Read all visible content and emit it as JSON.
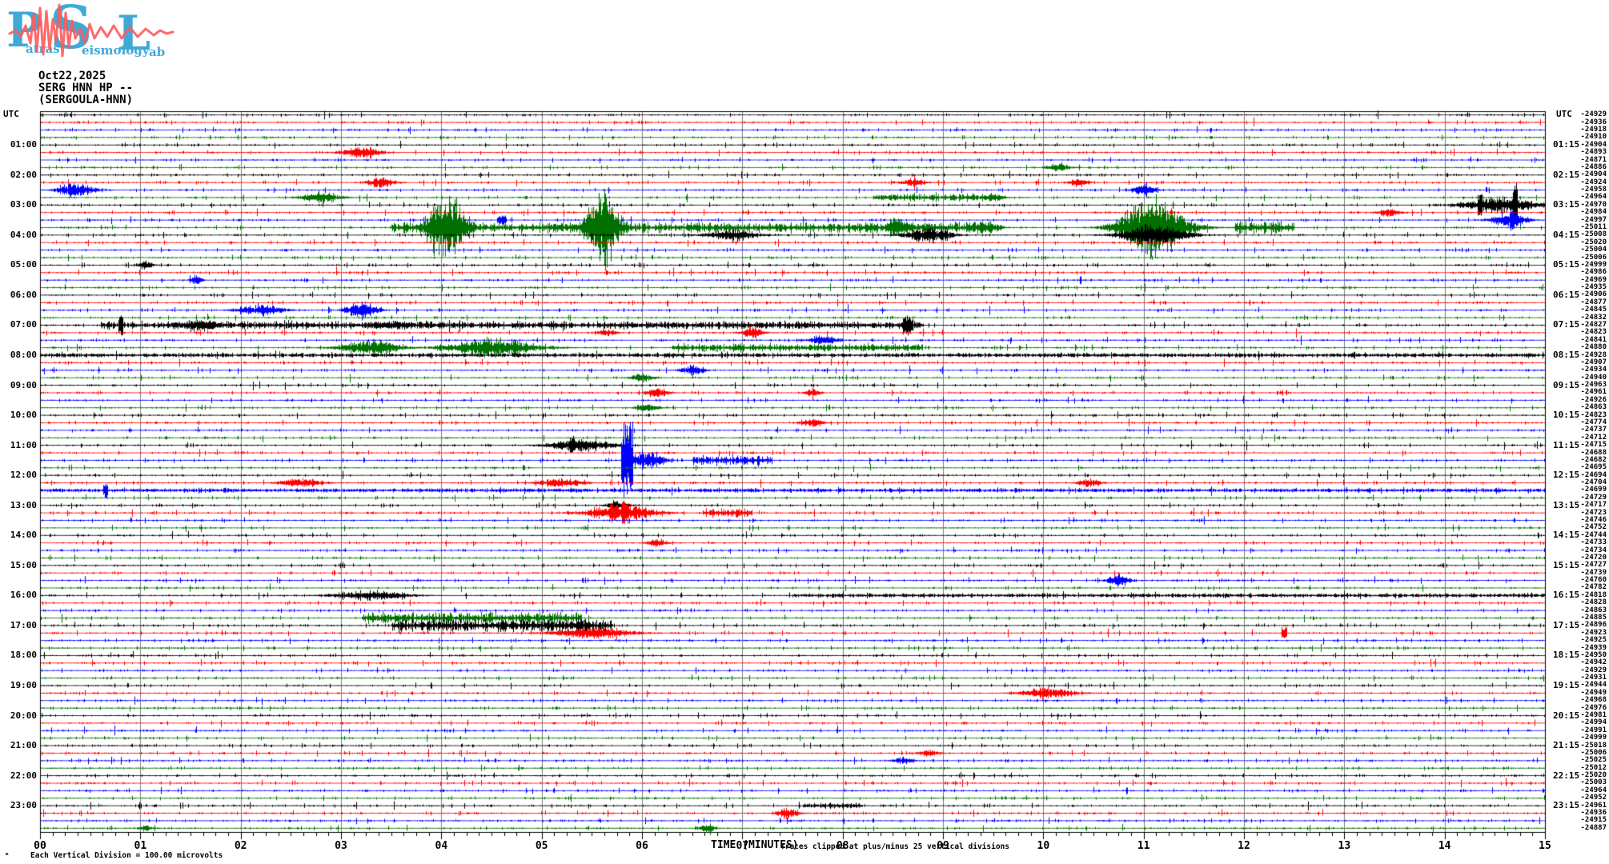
{
  "logo": {
    "big_p": "P",
    "big_s": "S",
    "big_l": "L",
    "small_1": "atras",
    "small_2": "eismology",
    "small_3": "ab",
    "blue": "#3fa9d8",
    "red": "#ff5a5a"
  },
  "header": {
    "date": "Oct22,2025",
    "station_line": "SERG HNN HP --",
    "station_name": "(SERGOULA-HNN)"
  },
  "axis": {
    "left_title": "UTC",
    "right_title": "UTC",
    "x_label": "TIME (MINUTES)",
    "clip_note": "Traces clipped at plus/minus 25 vertical divisions",
    "scale_note": "Each Vertical Division =  100.00 microvolts",
    "cursor_artifact": "ₘ"
  },
  "left_labels": [
    "01:00",
    "02:00",
    "03:00",
    "04:00",
    "05:00",
    "06:00",
    "07:00",
    "08:00",
    "09:00",
    "10:00",
    "11:00",
    "12:00",
    "13:00",
    "14:00",
    "15:00",
    "16:00",
    "17:00",
    "18:00",
    "19:00",
    "20:00",
    "21:00",
    "22:00",
    "23:00"
  ],
  "right_labels": [
    "01:15",
    "02:15",
    "03:15",
    "04:15",
    "05:15",
    "06:15",
    "07:15",
    "08:15",
    "09:15",
    "10:15",
    "11:15",
    "12:15",
    "13:15",
    "14:15",
    "15:15",
    "16:15",
    "17:15",
    "18:15",
    "19:15",
    "20:15",
    "21:15",
    "22:15",
    "23:15"
  ],
  "chart_data": {
    "type": "line",
    "subtype": "helicorder-seismogram",
    "title": "SERG HNN HP -- (SERGOULA-HNN)",
    "date": "Oct22,2025",
    "xlabel": "TIME (MINUTES)",
    "x_ticks": [
      "00",
      "01",
      "02",
      "03",
      "04",
      "05",
      "06",
      "07",
      "08",
      "09",
      "10",
      "11",
      "12",
      "13",
      "14",
      "15"
    ],
    "x_range_minutes": [
      0,
      15
    ],
    "minor_ticks_per_minute": 8,
    "hours": 24,
    "traces_per_hour": 4,
    "minutes_per_trace": 15,
    "vertical_division_microvolts": 100.0,
    "clip_divisions": 25,
    "grid": true,
    "grid_color": "#808080",
    "trace_colors": [
      "#000000",
      "#ff0000",
      "#0000ff",
      "#007000"
    ],
    "trace_offsets": [
      -24929,
      -24936,
      -24918,
      -24910,
      -24904,
      -24893,
      -24871,
      -24886,
      -24904,
      -24924,
      -24958,
      -24964,
      -24970,
      -24984,
      -24997,
      -25011,
      -25008,
      -25020,
      -25004,
      -25006,
      -24999,
      -24986,
      -24969,
      -24935,
      -24906,
      -24877,
      -24845,
      -24832,
      -24827,
      -24823,
      -24841,
      -24880,
      -24928,
      -24907,
      -24934,
      -24940,
      -24963,
      -24961,
      -24926,
      -24863,
      -24823,
      -24774,
      -24737,
      -24712,
      -24715,
      -24688,
      -24682,
      -24695,
      -24694,
      -24704,
      -24699,
      -24729,
      -24717,
      -24723,
      -24746,
      -24752,
      -24744,
      -24733,
      -24734,
      -24720,
      -24727,
      -24739,
      -24760,
      -24782,
      -24818,
      -24828,
      -24863,
      -24885,
      -24896,
      -24923,
      -24925,
      -24939,
      -24950,
      -24942,
      -24929,
      -24931,
      -24944,
      -24949,
      -24968,
      -24976,
      -24981,
      -24994,
      -24991,
      -24999,
      -25018,
      -25006,
      -25025,
      -25012,
      -25020,
      -25003,
      -24964,
      -24952,
      -24961,
      -24936,
      -24915,
      -24887
    ],
    "events": [
      {
        "t": 6,
        "m": 3.2,
        "d": 0.5,
        "a": 9,
        "s": "burst"
      },
      {
        "t": 8,
        "m": 10.15,
        "d": 0.3,
        "a": 6,
        "s": "burst"
      },
      {
        "t": 10,
        "m": 3.4,
        "d": 0.35,
        "a": 9,
        "s": "burst"
      },
      {
        "t": 10,
        "m": 8.7,
        "d": 0.3,
        "a": 6,
        "s": "burst"
      },
      {
        "t": 10,
        "m": 10.35,
        "d": 0.25,
        "a": 6,
        "s": "burst"
      },
      {
        "t": 11,
        "m": 0.35,
        "d": 0.5,
        "a": 10,
        "s": "burst"
      },
      {
        "t": 11,
        "m": 11.0,
        "d": 0.3,
        "a": 10,
        "s": "burst"
      },
      {
        "t": 12,
        "m": 2.8,
        "d": 0.5,
        "a": 9,
        "s": "burst"
      },
      {
        "t": 12,
        "m": 8.3,
        "d": 1.2,
        "a": 5,
        "s": "coda"
      },
      {
        "t": 12,
        "m": 9.5,
        "d": 0.3,
        "a": 6,
        "s": "burst"
      },
      {
        "t": 13,
        "m": 14.55,
        "d": 1.0,
        "a": 12,
        "s": "burst"
      },
      {
        "t": 13,
        "m": 14.7,
        "d": 0.05,
        "a": 35,
        "s": "spike"
      },
      {
        "t": 13,
        "m": 14.35,
        "d": 0.05,
        "a": 18,
        "s": "spike"
      },
      {
        "t": 14,
        "m": 13.45,
        "d": 0.3,
        "a": 6,
        "s": "burst"
      },
      {
        "t": 15,
        "m": 14.65,
        "d": 0.45,
        "a": 13,
        "s": "burst"
      },
      {
        "t": 15,
        "m": 4.6,
        "d": 0.1,
        "a": 6,
        "s": "spike"
      },
      {
        "t": 16,
        "m": 4.05,
        "d": 0.55,
        "a": 55,
        "s": "burst"
      },
      {
        "t": 16,
        "m": 5.6,
        "d": 0.5,
        "a": 55,
        "s": "burst"
      },
      {
        "t": 16,
        "m": 5.62,
        "d": 0.03,
        "a": 58,
        "s": "spike"
      },
      {
        "t": 16,
        "m": 3.5,
        "d": 6.0,
        "a": 7,
        "s": "coda"
      },
      {
        "t": 16,
        "m": 8.55,
        "d": 0.4,
        "a": 14,
        "s": "burst"
      },
      {
        "t": 16,
        "m": 9.4,
        "d": 0.4,
        "a": 12,
        "s": "burst"
      },
      {
        "t": 16,
        "m": 11.1,
        "d": 0.9,
        "a": 45,
        "s": "burst"
      },
      {
        "t": 16,
        "m": 11.9,
        "d": 0.6,
        "a": 10,
        "s": "coda"
      },
      {
        "t": 17,
        "m": 6.9,
        "d": 0.7,
        "a": 9,
        "s": "burst"
      },
      {
        "t": 17,
        "m": 8.85,
        "d": 0.6,
        "a": 12,
        "s": "burst"
      },
      {
        "t": 17,
        "m": 11.1,
        "d": 0.9,
        "a": 16,
        "s": "burst"
      },
      {
        "t": 21,
        "m": 1.05,
        "d": 0.2,
        "a": 6,
        "s": "burst"
      },
      {
        "t": 23,
        "m": 1.55,
        "d": 0.15,
        "a": 8,
        "s": "burst"
      },
      {
        "t": 27,
        "m": 2.2,
        "d": 0.6,
        "a": 8,
        "s": "burst"
      },
      {
        "t": 27,
        "m": 3.2,
        "d": 0.4,
        "a": 14,
        "s": "burst"
      },
      {
        "t": 29,
        "m": 0.8,
        "d": 0.05,
        "a": 16,
        "s": "spike"
      },
      {
        "t": 29,
        "m": 1.6,
        "d": 0.5,
        "a": 10,
        "s": "burst"
      },
      {
        "t": 29,
        "m": 0.6,
        "d": 8.2,
        "a": 5,
        "s": "coda"
      },
      {
        "t": 29,
        "m": 3.5,
        "d": 0.6,
        "a": 8,
        "s": "burst"
      },
      {
        "t": 29,
        "m": 8.65,
        "d": 0.1,
        "a": 14,
        "s": "spike"
      },
      {
        "t": 30,
        "m": 5.65,
        "d": 0.25,
        "a": 6,
        "s": "burst"
      },
      {
        "t": 30,
        "m": 7.1,
        "d": 0.3,
        "a": 8,
        "s": "burst"
      },
      {
        "t": 31,
        "m": 7.8,
        "d": 0.4,
        "a": 7,
        "s": "burst"
      },
      {
        "t": 32,
        "m": 3.3,
        "d": 0.8,
        "a": 12,
        "s": "burst"
      },
      {
        "t": 32,
        "m": 4.5,
        "d": 1.2,
        "a": 14,
        "s": "burst"
      },
      {
        "t": 32,
        "m": 6.3,
        "d": 2.5,
        "a": 5,
        "s": "coda"
      },
      {
        "t": 33,
        "m": 0,
        "d": 15,
        "a": 2.5,
        "s": "coda"
      },
      {
        "t": 35,
        "m": 6.5,
        "d": 0.3,
        "a": 8,
        "s": "burst"
      },
      {
        "t": 36,
        "m": 6.0,
        "d": 0.3,
        "a": 6,
        "s": "burst"
      },
      {
        "t": 38,
        "m": 6.15,
        "d": 0.3,
        "a": 8,
        "s": "burst"
      },
      {
        "t": 38,
        "m": 7.7,
        "d": 0.2,
        "a": 6,
        "s": "burst"
      },
      {
        "t": 40,
        "m": 6.05,
        "d": 0.3,
        "a": 6,
        "s": "burst"
      },
      {
        "t": 42,
        "m": 7.7,
        "d": 0.3,
        "a": 6,
        "s": "burst"
      },
      {
        "t": 45,
        "m": 5.4,
        "d": 0.9,
        "a": 9,
        "s": "burst"
      },
      {
        "t": 45,
        "m": 5.3,
        "d": 0.05,
        "a": 15,
        "s": "spike"
      },
      {
        "t": 47,
        "m": 5.85,
        "d": 0.12,
        "a": 59,
        "s": "spike"
      },
      {
        "t": 47,
        "m": 6.05,
        "d": 0.4,
        "a": 16,
        "s": "burst"
      },
      {
        "t": 47,
        "m": 6.5,
        "d": 0.8,
        "a": 7,
        "s": "coda"
      },
      {
        "t": 50,
        "m": 2.6,
        "d": 0.6,
        "a": 6,
        "s": "burst"
      },
      {
        "t": 50,
        "m": 5.2,
        "d": 0.6,
        "a": 7,
        "s": "burst"
      },
      {
        "t": 50,
        "m": 10.45,
        "d": 0.3,
        "a": 7,
        "s": "burst"
      },
      {
        "t": 51,
        "m": 0.65,
        "d": 0.05,
        "a": 12,
        "s": "spike"
      },
      {
        "t": 51,
        "m": 0,
        "d": 15,
        "a": 2.2,
        "s": "coda"
      },
      {
        "t": 53,
        "m": 5.75,
        "d": 0.3,
        "a": 6,
        "s": "burst"
      },
      {
        "t": 54,
        "m": 5.8,
        "d": 0.9,
        "a": 13,
        "s": "burst"
      },
      {
        "t": 54,
        "m": 5.82,
        "d": 0.05,
        "a": 25,
        "s": "spike"
      },
      {
        "t": 54,
        "m": 6.6,
        "d": 0.5,
        "a": 6,
        "s": "coda"
      },
      {
        "t": 58,
        "m": 6.15,
        "d": 0.25,
        "a": 6,
        "s": "burst"
      },
      {
        "t": 63,
        "m": 10.75,
        "d": 0.3,
        "a": 9,
        "s": "burst"
      },
      {
        "t": 65,
        "m": 3.3,
        "d": 1.0,
        "a": 7,
        "s": "burst"
      },
      {
        "t": 65,
        "m": 7.5,
        "d": 7.5,
        "a": 2.2,
        "s": "coda"
      },
      {
        "t": 68,
        "m": 3.2,
        "d": 2.2,
        "a": 8,
        "s": "coda"
      },
      {
        "t": 69,
        "m": 3.5,
        "d": 2.2,
        "a": 9,
        "s": "coda"
      },
      {
        "t": 70,
        "m": 5.5,
        "d": 1.1,
        "a": 8,
        "s": "burst"
      },
      {
        "t": 70,
        "m": 12.4,
        "d": 0.05,
        "a": 10,
        "s": "spike"
      },
      {
        "t": 78,
        "m": 10.05,
        "d": 0.7,
        "a": 9,
        "s": "burst"
      },
      {
        "t": 86,
        "m": 8.85,
        "d": 0.3,
        "a": 5,
        "s": "burst"
      },
      {
        "t": 87,
        "m": 8.6,
        "d": 0.3,
        "a": 5,
        "s": "burst"
      },
      {
        "t": 93,
        "m": 7.6,
        "d": 0.6,
        "a": 4,
        "s": "coda"
      },
      {
        "t": 94,
        "m": 7.45,
        "d": 0.3,
        "a": 8,
        "s": "burst"
      },
      {
        "t": 96,
        "m": 6.65,
        "d": 0.2,
        "a": 7,
        "s": "burst"
      },
      {
        "t": 96,
        "m": 1.05,
        "d": 0.15,
        "a": 5,
        "s": "burst"
      }
    ]
  }
}
